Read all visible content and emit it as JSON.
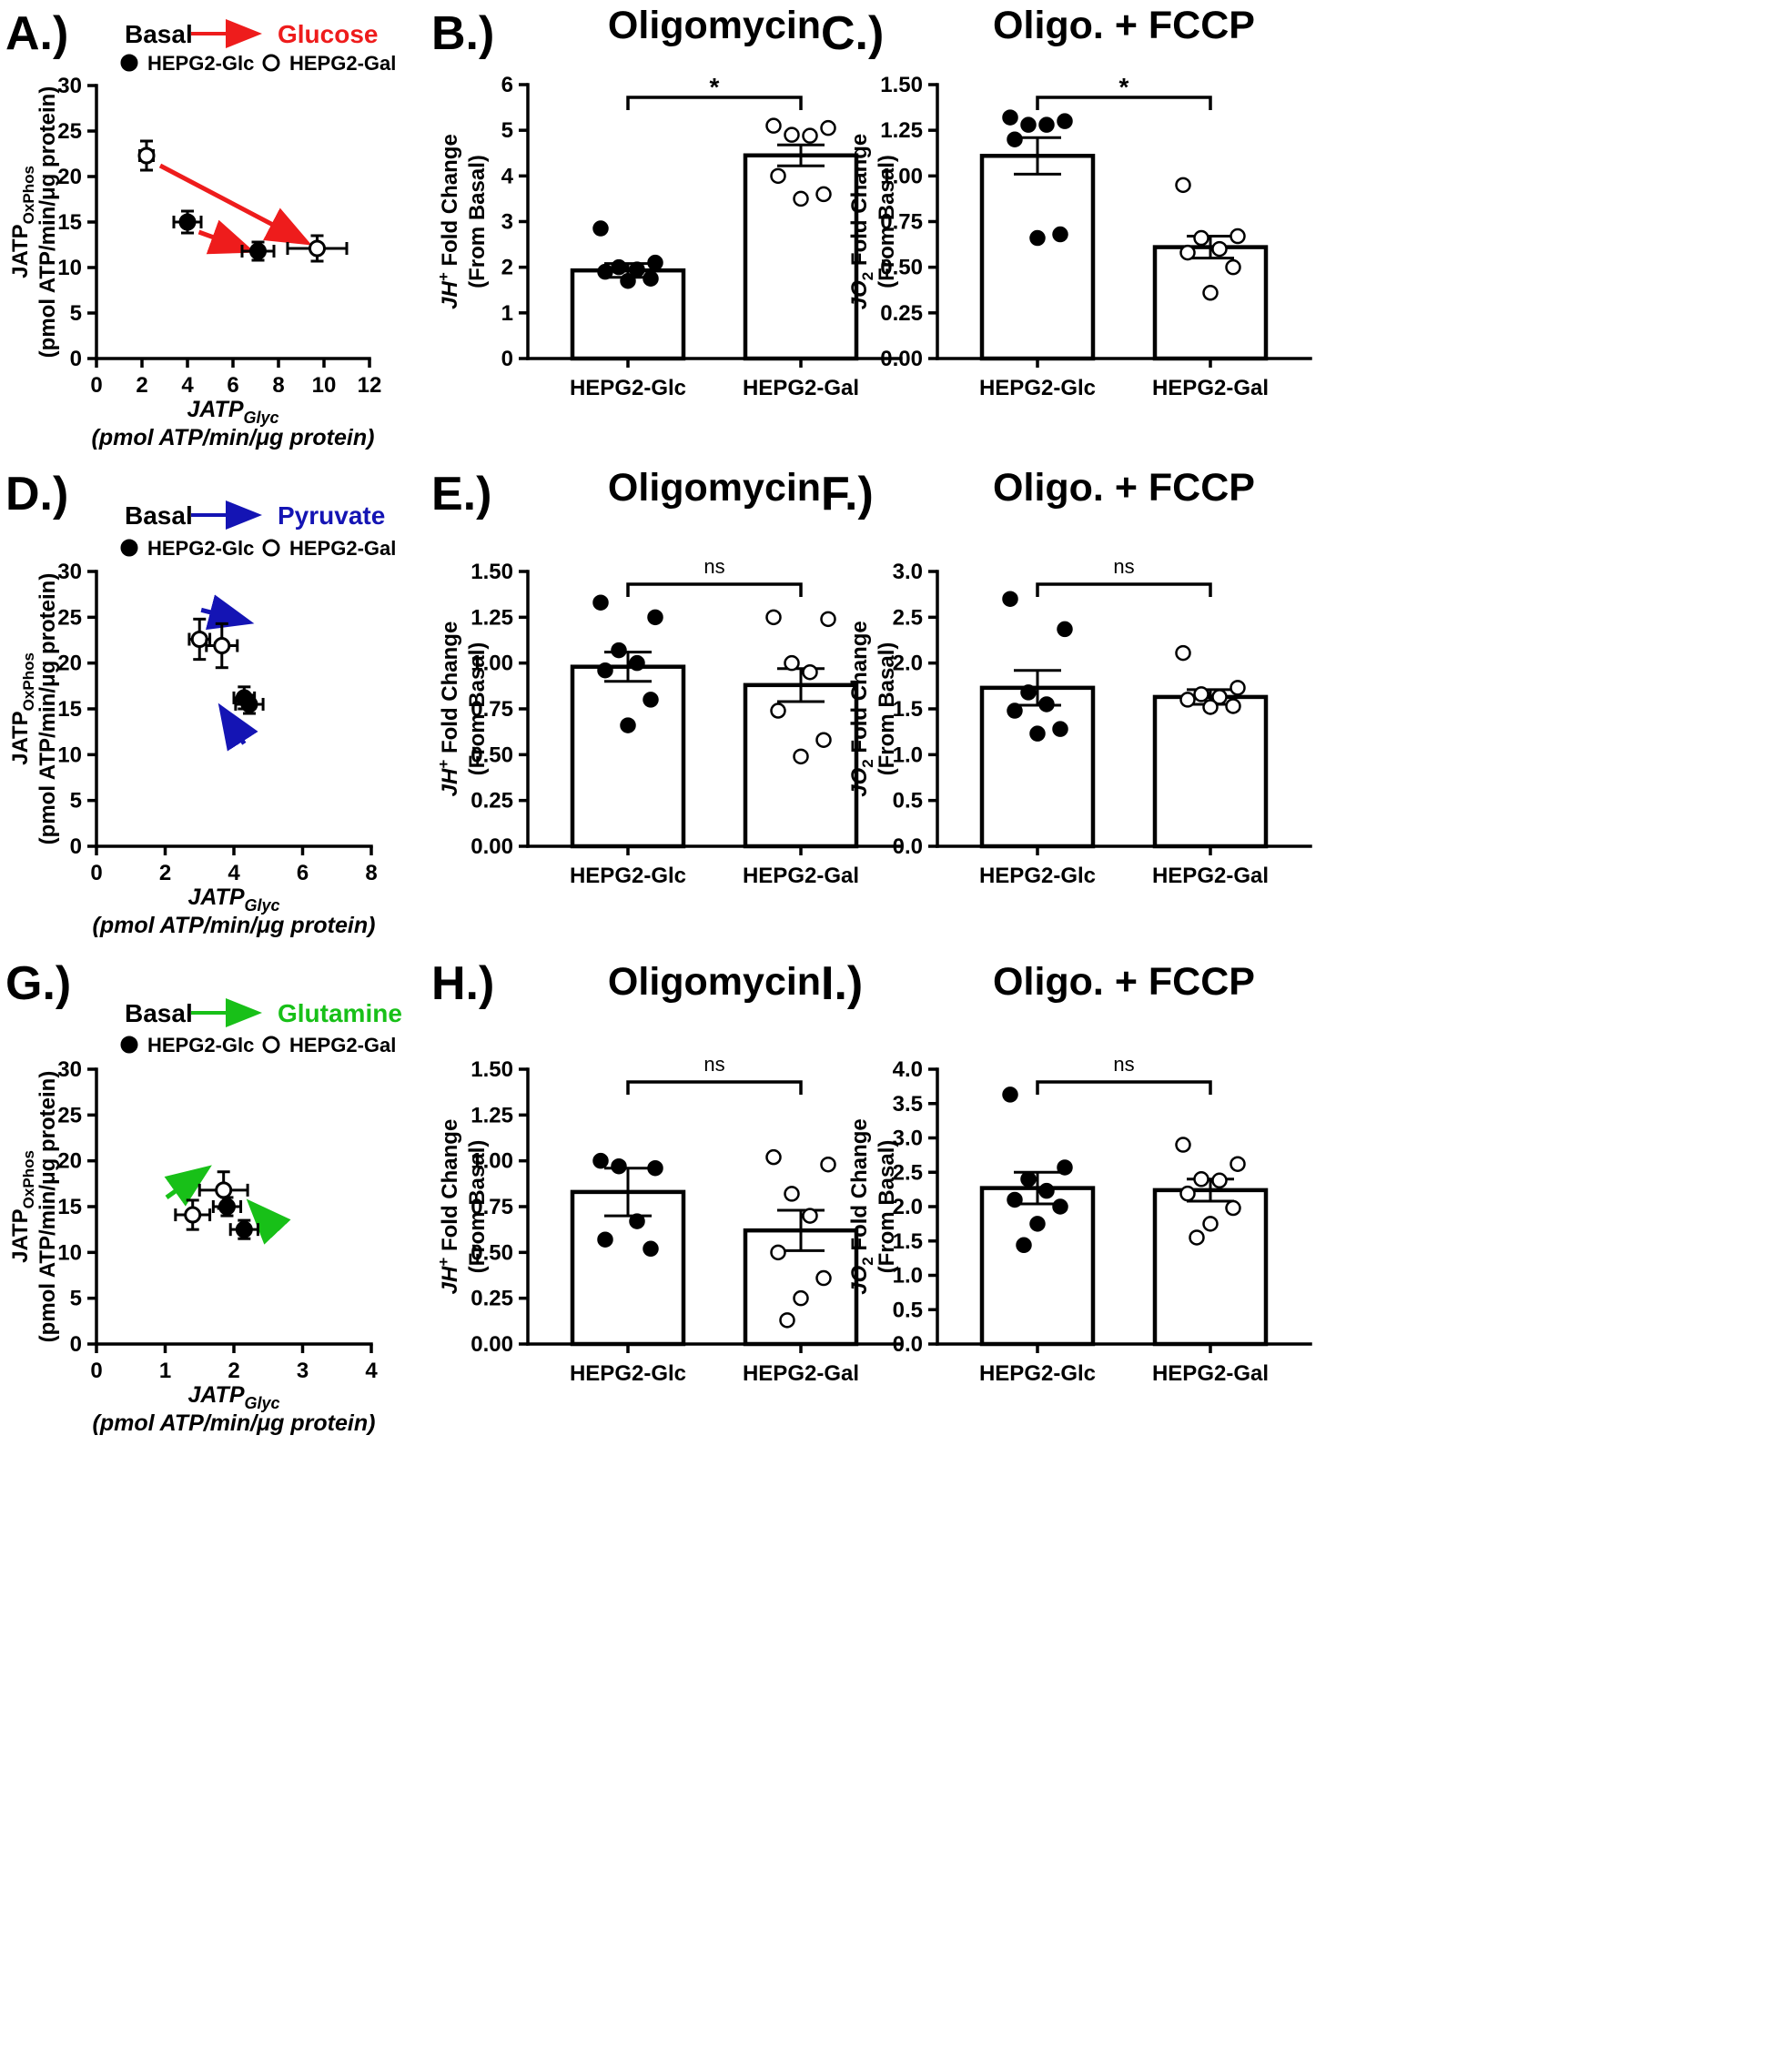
{
  "colors": {
    "glucose": "#ee1c1c",
    "pyruvate": "#1414b4",
    "glutamine": "#18c018",
    "ink": "#000000"
  },
  "chart_data": [
    {
      "id": "A",
      "label": "A.)",
      "type": "scatter",
      "legend": {
        "from": "Basal",
        "to": "Glucose",
        "color_key": "glucose",
        "series_filled": "HEPG2-Glc",
        "series_open": "HEPG2-Gal"
      },
      "xlabel_main": "JATP",
      "xlabel_sub": "Glyc",
      "xunits": "(pmol ATP/min/μg protein)",
      "ylabel_main": "JATP",
      "ylabel_sub": "OxPhos",
      "yunits": "(pmol ATP/min/μg protein)",
      "xlim": [
        0,
        12
      ],
      "ylim": [
        0,
        30
      ],
      "xticks": [
        "0",
        "2",
        "4",
        "6",
        "8",
        "10",
        "12"
      ],
      "yticks": [
        "0",
        "5",
        "10",
        "15",
        "20",
        "25",
        "30"
      ],
      "points": [
        {
          "series": "HEPG2-Glc",
          "state": "Basal",
          "x": 4.0,
          "y": 15.0,
          "xerr": 0.6,
          "yerr": 1.2
        },
        {
          "series": "HEPG2-Glc",
          "state": "Glucose",
          "x": 7.1,
          "y": 11.8,
          "xerr": 0.7,
          "yerr": 1.0
        },
        {
          "series": "HEPG2-Gal",
          "state": "Basal",
          "x": 2.2,
          "y": 22.3,
          "xerr": 0.3,
          "yerr": 1.6
        },
        {
          "series": "HEPG2-Gal",
          "state": "Glucose",
          "x": 9.7,
          "y": 12.1,
          "xerr": 1.3,
          "yerr": 1.4
        }
      ],
      "arrows": [
        {
          "x1": 4.5,
          "y1": 13.9,
          "x2": 6.7,
          "y2": 11.9
        },
        {
          "x1": 2.8,
          "y1": 21.2,
          "x2": 9.2,
          "y2": 12.8
        }
      ]
    },
    {
      "id": "B",
      "label": "B.)",
      "type": "bar",
      "title": "Oligomycin",
      "ylabel": "JH+ Fold Change (From Basal)",
      "ylabel_parts": [
        "JH",
        "+",
        " Fold Change",
        "(From Basal)"
      ],
      "ylim": [
        0,
        6
      ],
      "yticks": [
        "0",
        "1",
        "2",
        "3",
        "4",
        "5",
        "6"
      ],
      "categories": [
        "HEPG2-Glc",
        "HEPG2-Gal"
      ],
      "means": [
        1.93,
        4.45
      ],
      "sem": [
        0.15,
        0.23
      ],
      "points": [
        [
          2.85,
          2.1,
          2.0,
          1.95,
          1.9,
          1.75,
          1.7
        ],
        [
          5.1,
          5.05,
          4.9,
          4.88,
          4.0,
          3.6,
          3.5
        ]
      ],
      "filled": [
        true,
        false
      ],
      "significance": "*"
    },
    {
      "id": "C",
      "label": "C.)",
      "type": "bar",
      "title": "Oligo. + FCCP",
      "ylabel": "JO2 Fold Change (From Basal)",
      "ylabel_parts": [
        "JO",
        "2",
        " Fold Change",
        "(From Basal)"
      ],
      "ylim": [
        0,
        1.5
      ],
      "yticks": [
        "0.00",
        "0.25",
        "0.50",
        "0.75",
        "1.00",
        "1.25",
        "1.50"
      ],
      "categories": [
        "HEPG2-Glc",
        "HEPG2-Gal"
      ],
      "means": [
        1.11,
        0.61
      ],
      "sem": [
        0.1,
        0.06
      ],
      "points": [
        [
          1.32,
          1.3,
          1.28,
          1.28,
          1.2,
          0.68,
          0.66
        ],
        [
          0.95,
          0.67,
          0.66,
          0.6,
          0.58,
          0.5,
          0.36
        ]
      ],
      "filled": [
        true,
        false
      ],
      "significance": "*"
    },
    {
      "id": "D",
      "label": "D.)",
      "type": "scatter",
      "legend": {
        "from": "Basal",
        "to": "Pyruvate",
        "color_key": "pyruvate",
        "series_filled": "HEPG2-Glc",
        "series_open": "HEPG2-Gal"
      },
      "xlabel_main": "JATP",
      "xlabel_sub": "Glyc",
      "xunits": "(pmol ATP/min/μg protein)",
      "ylabel_main": "JATP",
      "ylabel_sub": "OxPhos",
      "yunits": "(pmol ATP/min/μg protein)",
      "xlim": [
        0,
        8
      ],
      "ylim": [
        0,
        30
      ],
      "xticks": [
        "0",
        "2",
        "4",
        "6",
        "8"
      ],
      "yticks": [
        "0",
        "5",
        "10",
        "15",
        "20",
        "25",
        "30"
      ],
      "points": [
        {
          "series": "HEPG2-Glc",
          "state": "Basal",
          "x": 4.3,
          "y": 16.2,
          "xerr": 0.3,
          "yerr": 1.2
        },
        {
          "series": "HEPG2-Glc",
          "state": "Pyruvate",
          "x": 4.45,
          "y": 15.5,
          "xerr": 0.4,
          "yerr": 1.0
        },
        {
          "series": "HEPG2-Gal",
          "state": "Basal",
          "x": 3.0,
          "y": 22.6,
          "xerr": 0.3,
          "yerr": 2.2
        },
        {
          "series": "HEPG2-Gal",
          "state": "Pyruvate",
          "x": 3.65,
          "y": 21.9,
          "xerr": 0.45,
          "yerr": 2.4
        }
      ],
      "arrows": [
        {
          "x1": 3.05,
          "y1": 25.8,
          "x2": 4.4,
          "y2": 24.5
        },
        {
          "x1": 4.3,
          "y1": 11.2,
          "x2": 3.65,
          "y2": 15.0
        }
      ]
    },
    {
      "id": "E",
      "label": "E.)",
      "type": "bar",
      "title": "Oligomycin",
      "ylabel": "JH+ Fold Change (From Basal)",
      "ylabel_parts": [
        "JH",
        "+",
        " Fold Change",
        "(From Basal)"
      ],
      "ylim": [
        0,
        1.5
      ],
      "yticks": [
        "0.00",
        "0.25",
        "0.50",
        "0.75",
        "1.00",
        "1.25",
        "1.50"
      ],
      "categories": [
        "HEPG2-Glc",
        "HEPG2-Gal"
      ],
      "means": [
        0.98,
        0.88
      ],
      "sem": [
        0.08,
        0.09
      ],
      "points": [
        [
          1.33,
          1.25,
          1.07,
          1.0,
          0.96,
          0.8,
          0.66
        ],
        [
          1.25,
          1.24,
          1.0,
          0.95,
          0.74,
          0.58,
          0.49
        ]
      ],
      "filled": [
        true,
        false
      ],
      "significance": "ns"
    },
    {
      "id": "F",
      "label": "F.)",
      "type": "bar",
      "title": "Oligo. + FCCP",
      "ylabel": "JO2 Fold Change (From Basal)",
      "ylabel_parts": [
        "JO",
        "2",
        " Fold Change",
        "(From Basal)"
      ],
      "ylim": [
        0,
        3.0
      ],
      "yticks": [
        "0.0",
        "0.5",
        "1.0",
        "1.5",
        "2.0",
        "2.5",
        "3.0"
      ],
      "categories": [
        "HEPG2-Glc",
        "HEPG2-Gal"
      ],
      "means": [
        1.73,
        1.63
      ],
      "sem": [
        0.19,
        0.08
      ],
      "points": [
        [
          2.7,
          2.37,
          1.68,
          1.55,
          1.48,
          1.28,
          1.23
        ],
        [
          2.11,
          1.73,
          1.66,
          1.63,
          1.6,
          1.53,
          1.52
        ]
      ],
      "filled": [
        true,
        false
      ],
      "significance": "ns"
    },
    {
      "id": "G",
      "label": "G.)",
      "type": "scatter",
      "legend": {
        "from": "Basal",
        "to": "Glutamine",
        "color_key": "glutamine",
        "series_filled": "HEPG2-Glc",
        "series_open": "HEPG2-Gal"
      },
      "xlabel_main": "JATP",
      "xlabel_sub": "Glyc",
      "xunits": "(pmol ATP/min/μg protein)",
      "ylabel_main": "JATP",
      "ylabel_sub": "OxPhos",
      "yunits": "(pmol ATP/min/μg protein)",
      "xlim": [
        0,
        4
      ],
      "ylim": [
        0,
        30
      ],
      "xticks": [
        "0",
        "1",
        "2",
        "3",
        "4"
      ],
      "yticks": [
        "0",
        "5",
        "10",
        "15",
        "20",
        "25",
        "30"
      ],
      "points": [
        {
          "series": "HEPG2-Glc",
          "state": "Basal",
          "x": 2.15,
          "y": 12.5,
          "xerr": 0.2,
          "yerr": 1.0
        },
        {
          "series": "HEPG2-Glc",
          "state": "Glutamine",
          "x": 1.9,
          "y": 15.0,
          "xerr": 0.2,
          "yerr": 1.0
        },
        {
          "series": "HEPG2-Gal",
          "state": "Basal",
          "x": 1.4,
          "y": 14.1,
          "xerr": 0.25,
          "yerr": 1.6
        },
        {
          "series": "HEPG2-Gal",
          "state": "Glutamine",
          "x": 1.85,
          "y": 16.8,
          "xerr": 0.35,
          "yerr": 2.0
        }
      ],
      "arrows": [
        {
          "x1": 1.02,
          "y1": 16.0,
          "x2": 1.6,
          "y2": 19.1
        },
        {
          "x1": 2.55,
          "y1": 12.9,
          "x2": 2.25,
          "y2": 15.3
        }
      ]
    },
    {
      "id": "H",
      "label": "H.)",
      "type": "bar",
      "title": "Oligomycin",
      "ylabel": "JH+ Fold Change (From Basal)",
      "ylabel_parts": [
        "JH",
        "+",
        " Fold Change",
        "(From Basal)"
      ],
      "ylim": [
        0,
        1.5
      ],
      "yticks": [
        "0.00",
        "0.25",
        "0.50",
        "0.75",
        "1.00",
        "1.25",
        "1.50"
      ],
      "categories": [
        "HEPG2-Glc",
        "HEPG2-Gal"
      ],
      "means": [
        0.83,
        0.62
      ],
      "sem": [
        0.13,
        0.11
      ],
      "points": [
        [
          1.0,
          0.96,
          0.97,
          0.67,
          0.57,
          0.52
        ],
        [
          1.02,
          0.98,
          0.82,
          0.7,
          0.5,
          0.36,
          0.25,
          0.13
        ]
      ],
      "filled": [
        true,
        false
      ],
      "significance": "ns"
    },
    {
      "id": "I",
      "label": "I.)",
      "type": "bar",
      "title": "Oligo. + FCCP",
      "ylabel": "JO2 Fold Change (From Basal)",
      "ylabel_parts": [
        "JO",
        "2",
        " Fold Change",
        "(From Basal)"
      ],
      "ylim": [
        0,
        4.0
      ],
      "yticks": [
        "0.0",
        "0.5",
        "1.0",
        "1.5",
        "2.0",
        "2.5",
        "3.0",
        "3.5",
        "4.0"
      ],
      "categories": [
        "HEPG2-Glc",
        "HEPG2-Gal"
      ],
      "means": [
        2.27,
        2.24
      ],
      "sem": [
        0.23,
        0.16
      ],
      "points": [
        [
          3.63,
          2.57,
          2.4,
          2.23,
          2.1,
          2.0,
          1.75,
          1.44
        ],
        [
          2.9,
          2.62,
          2.4,
          2.38,
          2.19,
          1.98,
          1.75,
          1.55
        ]
      ],
      "filled": [
        true,
        false
      ],
      "significance": "ns"
    }
  ]
}
